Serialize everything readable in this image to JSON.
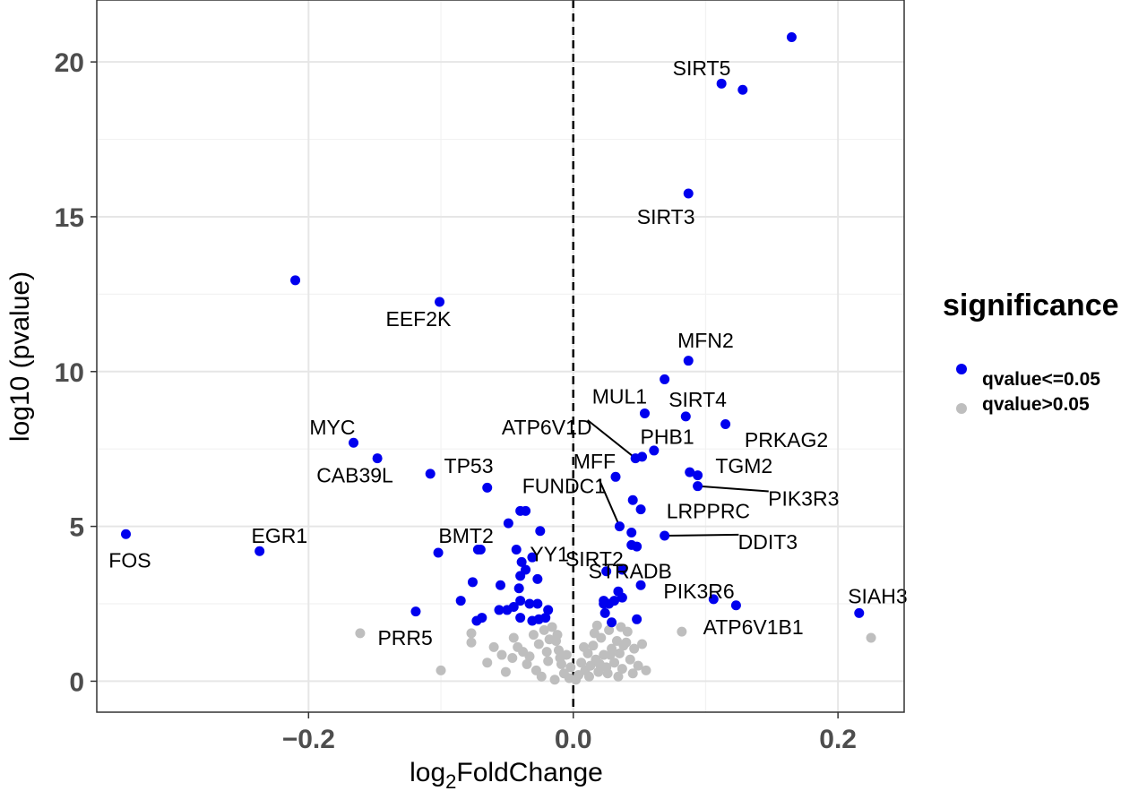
{
  "chart_data": {
    "type": "scatter",
    "xlabel_main": "log",
    "xlabel_sub": "2",
    "xlabel_rest": "FoldChange",
    "ylabel": "log10 (pvalue)",
    "xlim": [
      -0.36,
      0.25
    ],
    "ylim": [
      -1,
      22
    ],
    "x_ticks": [
      -0.2,
      0.0,
      0.2
    ],
    "x_tick_labels": [
      "−0.2",
      "0.0",
      "0.2"
    ],
    "y_ticks": [
      0,
      5,
      10,
      15,
      20
    ],
    "y_tick_labels": [
      "0",
      "5",
      "10",
      "15",
      "20"
    ],
    "grid": true,
    "vline_x": 0,
    "legend": {
      "title": "significance",
      "position": "right",
      "entries": [
        {
          "label": "qvalue<=0.05",
          "color": "#0000ee"
        },
        {
          "label": "qvalue>0.05",
          "color": "#bebebe"
        }
      ]
    },
    "series": [
      {
        "name": "qvalue<=0.05",
        "color": "#0000ee",
        "points": [
          [
            0.165,
            20.8
          ],
          [
            0.112,
            19.3
          ],
          [
            0.128,
            19.1
          ],
          [
            0.087,
            15.75
          ],
          [
            -0.21,
            12.95
          ],
          [
            -0.101,
            12.25
          ],
          [
            0.087,
            10.35
          ],
          [
            0.069,
            9.75
          ],
          [
            0.054,
            8.65
          ],
          [
            0.085,
            8.55
          ],
          [
            0.115,
            8.3
          ],
          [
            -0.166,
            7.7
          ],
          [
            0.061,
            7.45
          ],
          [
            0.052,
            7.25
          ],
          [
            0.047,
            7.2
          ],
          [
            -0.148,
            7.2
          ],
          [
            0.088,
            6.75
          ],
          [
            0.094,
            6.65
          ],
          [
            0.032,
            6.6
          ],
          [
            -0.108,
            6.7
          ],
          [
            0.094,
            6.3
          ],
          [
            -0.065,
            6.25
          ],
          [
            0.045,
            5.85
          ],
          [
            0.051,
            5.55
          ],
          [
            -0.04,
            5.5
          ],
          [
            -0.036,
            5.5
          ],
          [
            -0.049,
            5.1
          ],
          [
            0.035,
            5.0
          ],
          [
            -0.025,
            4.85
          ],
          [
            0.044,
            4.8
          ],
          [
            0.069,
            4.7
          ],
          [
            -0.338,
            4.75
          ],
          [
            -0.237,
            4.2
          ],
          [
            -0.102,
            4.15
          ],
          [
            -0.072,
            4.25
          ],
          [
            -0.07,
            4.25
          ],
          [
            0.044,
            4.4
          ],
          [
            0.048,
            4.35
          ],
          [
            -0.043,
            4.25
          ],
          [
            -0.031,
            4.0
          ],
          [
            -0.039,
            3.85
          ],
          [
            -0.036,
            3.6
          ],
          [
            -0.04,
            3.4
          ],
          [
            -0.027,
            3.3
          ],
          [
            -0.076,
            3.2
          ],
          [
            -0.055,
            3.1
          ],
          [
            -0.041,
            3.0
          ],
          [
            0.025,
            3.55
          ],
          [
            0.037,
            3.6
          ],
          [
            0.051,
            3.1
          ],
          [
            0.034,
            2.9
          ],
          [
            -0.085,
            2.6
          ],
          [
            -0.04,
            2.6
          ],
          [
            -0.033,
            2.5
          ],
          [
            -0.027,
            2.5
          ],
          [
            -0.019,
            2.3
          ],
          [
            -0.056,
            2.3
          ],
          [
            -0.05,
            2.3
          ],
          [
            0.027,
            2.5
          ],
          [
            0.023,
            2.6
          ],
          [
            0.031,
            2.6
          ],
          [
            0.037,
            2.7
          ],
          [
            0.106,
            2.65
          ],
          [
            0.123,
            2.45
          ],
          [
            0.216,
            2.2
          ],
          [
            -0.119,
            2.25
          ],
          [
            -0.073,
            1.95
          ],
          [
            -0.069,
            2.05
          ],
          [
            -0.04,
            2.05
          ],
          [
            -0.031,
            1.95
          ],
          [
            -0.026,
            2.0
          ],
          [
            -0.021,
            2.05
          ],
          [
            0.024,
            2.2
          ],
          [
            0.029,
            1.9
          ],
          [
            0.048,
            2.0
          ],
          [
            -0.045,
            2.4
          ],
          [
            0.023,
            2.5
          ]
        ]
      },
      {
        "name": "qvalue>0.05",
        "color": "#bebebe",
        "points": [
          [
            -0.161,
            1.55
          ],
          [
            -0.1,
            0.35
          ],
          [
            0.082,
            1.6
          ],
          [
            0.225,
            1.4
          ],
          [
            0.055,
            0.35
          ],
          [
            -0.077,
            1.55
          ],
          [
            -0.077,
            1.25
          ],
          [
            -0.045,
            1.4
          ],
          [
            -0.042,
            1.1
          ],
          [
            -0.046,
            0.75
          ],
          [
            -0.035,
            0.55
          ],
          [
            -0.03,
            1.5
          ],
          [
            -0.026,
            1.2
          ],
          [
            -0.022,
            1.65
          ],
          [
            -0.02,
            0.95
          ],
          [
            -0.019,
            0.65
          ],
          [
            -0.016,
            1.75
          ],
          [
            -0.013,
            1.3
          ],
          [
            -0.011,
            1.0
          ],
          [
            -0.009,
            0.55
          ],
          [
            -0.007,
            0.25
          ],
          [
            -0.005,
            0.85
          ],
          [
            -0.003,
            0.1
          ],
          [
            -0.002,
            0.45
          ],
          [
            0.002,
            0.05
          ],
          [
            0.004,
            0.2
          ],
          [
            0.006,
            0.6
          ],
          [
            0.009,
            0.35
          ],
          [
            0.011,
            0.9
          ],
          [
            0.013,
            0.5
          ],
          [
            0.015,
            1.15
          ],
          [
            0.017,
            0.7
          ],
          [
            0.019,
            0.3
          ],
          [
            0.021,
            1.4
          ],
          [
            0.023,
            0.85
          ],
          [
            0.025,
            0.45
          ],
          [
            0.027,
            1.65
          ],
          [
            0.029,
            1.05
          ],
          [
            0.031,
            0.6
          ],
          [
            0.033,
            1.3
          ],
          [
            0.035,
            0.9
          ],
          [
            0.037,
            0.4
          ],
          [
            0.04,
            1.25
          ],
          [
            0.043,
            0.7
          ],
          [
            0.046,
            1.05
          ],
          [
            0.049,
            0.5
          ],
          [
            -0.051,
            0.3
          ],
          [
            -0.054,
            0.85
          ],
          [
            -0.028,
            0.35
          ],
          [
            -0.024,
            0.15
          ],
          [
            -0.014,
            0.05
          ],
          [
            -0.01,
            0.75
          ],
          [
            0.008,
            1.1
          ],
          [
            0.012,
            0.15
          ],
          [
            0.018,
            1.8
          ],
          [
            0.026,
            0.25
          ],
          [
            0.034,
            0.15
          ],
          [
            0.041,
            1.6
          ],
          [
            0.045,
            0.25
          ],
          [
            -0.038,
            0.95
          ],
          [
            -0.06,
            1.1
          ],
          [
            -0.065,
            0.6
          ],
          [
            -0.018,
            1.35
          ],
          [
            0.016,
            1.55
          ],
          [
            0.036,
            1.75
          ],
          [
            0.02,
            0.55
          ],
          [
            0.028,
            0.85
          ],
          [
            0.038,
            1.15
          ],
          [
            0.052,
            1.2
          ],
          [
            -0.012,
            1.5
          ],
          [
            -0.033,
            0.8
          ]
        ]
      }
    ],
    "labels": [
      {
        "text": "SIRT5",
        "x": 0.097,
        "y": 19.8,
        "px": 0.112,
        "py": 19.3
      },
      {
        "text": "SIRT3",
        "x": 0.07,
        "y": 15.0,
        "px": 0.087,
        "py": 15.75
      },
      {
        "text": "EEF2K",
        "x": -0.117,
        "y": 11.7,
        "px": -0.101,
        "py": 12.25
      },
      {
        "text": "MFN2",
        "x": 0.1,
        "y": 11.0,
        "px": 0.087,
        "py": 10.35
      },
      {
        "text": "MUL1",
        "x": 0.035,
        "y": 9.2,
        "px": 0.054,
        "py": 8.65
      },
      {
        "text": "SIRT4",
        "x": 0.094,
        "y": 9.1,
        "px": 0.085,
        "py": 8.55
      },
      {
        "text": "ATP6V1D",
        "x": -0.02,
        "y": 8.2,
        "px": 0.047,
        "py": 7.2,
        "leader": true
      },
      {
        "text": "MYC",
        "x": -0.182,
        "y": 8.2,
        "px": -0.166,
        "py": 7.7
      },
      {
        "text": "PHB1",
        "x": 0.071,
        "y": 7.9,
        "px": 0.061,
        "py": 7.45
      },
      {
        "text": "PRKAG2",
        "x": 0.161,
        "y": 7.8,
        "px": 0.115,
        "py": 8.3
      },
      {
        "text": "MFF",
        "x": 0.016,
        "y": 7.1,
        "px": 0.032,
        "py": 6.6
      },
      {
        "text": "TGM2",
        "x": 0.129,
        "y": 6.95,
        "px": 0.094,
        "py": 6.65
      },
      {
        "text": "CAB39L",
        "x": -0.165,
        "y": 6.65,
        "px": -0.148,
        "py": 7.2
      },
      {
        "text": "TP53",
        "x": -0.079,
        "y": 6.95,
        "px": -0.108,
        "py": 6.7
      },
      {
        "text": "FUNDC1",
        "x": -0.007,
        "y": 6.3,
        "px": 0.035,
        "py": 5.0,
        "leader": true
      },
      {
        "text": "PIK3R3",
        "x": 0.174,
        "y": 5.9,
        "px": 0.094,
        "py": 6.3,
        "leader": true
      },
      {
        "text": "LRPPRC",
        "x": 0.102,
        "y": 5.5,
        "px": 0.051,
        "py": 5.55
      },
      {
        "text": "EGR1",
        "x": -0.222,
        "y": 4.7,
        "px": -0.237,
        "py": 4.2
      },
      {
        "text": "BMT2",
        "x": -0.081,
        "y": 4.7,
        "px": -0.072,
        "py": 4.25
      },
      {
        "text": "DDIT3",
        "x": 0.147,
        "y": 4.5,
        "px": 0.069,
        "py": 4.7,
        "leader": true
      },
      {
        "text": "FOS",
        "x": -0.335,
        "y": 3.9,
        "px": -0.338,
        "py": 4.75
      },
      {
        "text": "YY1",
        "x": -0.018,
        "y": 4.1,
        "px": -0.031,
        "py": 4.0
      },
      {
        "text": "SIRT2",
        "x": 0.016,
        "y": 3.95,
        "px": 0.037,
        "py": 3.6
      },
      {
        "text": "STRADB",
        "x": 0.043,
        "y": 3.55,
        "px": 0.044,
        "py": 4.4
      },
      {
        "text": "PIK3R6",
        "x": 0.095,
        "y": 2.9,
        "px": 0.051,
        "py": 3.1
      },
      {
        "text": "SIAH3",
        "x": 0.23,
        "y": 2.75,
        "px": 0.216,
        "py": 2.2
      },
      {
        "text": "ATP6V1B1",
        "x": 0.136,
        "y": 1.75,
        "px": 0.106,
        "py": 2.65
      },
      {
        "text": "PRR5",
        "x": -0.127,
        "y": 1.4,
        "px": -0.161,
        "py": 1.55
      }
    ]
  }
}
